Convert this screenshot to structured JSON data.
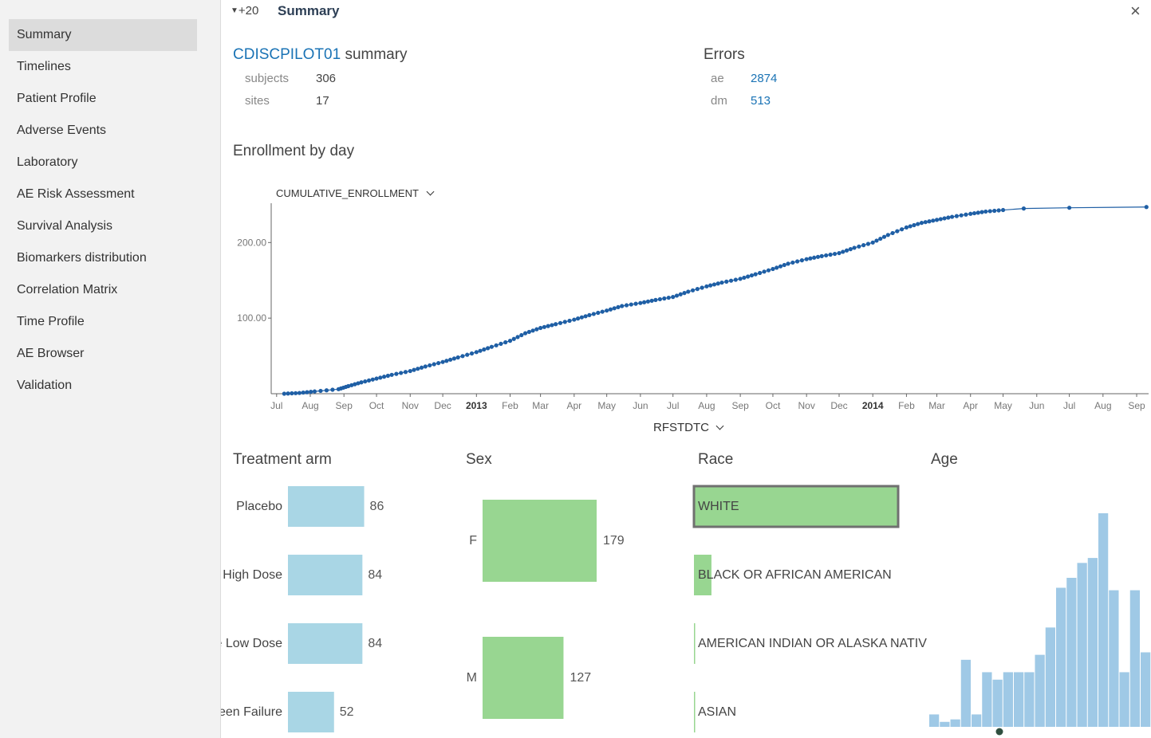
{
  "sidebar": {
    "items": [
      {
        "label": "Summary",
        "active": true
      },
      {
        "label": "Timelines"
      },
      {
        "label": "Patient Profile"
      },
      {
        "label": "Adverse Events"
      },
      {
        "label": "Laboratory"
      },
      {
        "label": "AE Risk Assessment"
      },
      {
        "label": "Survival Analysis"
      },
      {
        "label": "Biomarkers distribution"
      },
      {
        "label": "Correlation Matrix"
      },
      {
        "label": "Time Profile"
      },
      {
        "label": "AE Browser"
      },
      {
        "label": "Validation"
      }
    ]
  },
  "header": {
    "count": "+20",
    "title": "Summary",
    "close_icon": "close-icon",
    "collapse_icon": "caret-down-icon"
  },
  "summary": {
    "study": "CDISCPILOT01",
    "suffix": "summary",
    "stats": [
      {
        "label": "subjects",
        "value": "306"
      },
      {
        "label": "sites",
        "value": "17"
      }
    ]
  },
  "errors": {
    "title": "Errors",
    "items": [
      {
        "label": "ae",
        "value": "2874"
      },
      {
        "label": "dm",
        "value": "513"
      }
    ]
  },
  "enrollment": {
    "title": "Enrollment by day",
    "y_selector": "CUMULATIVE_ENROLLMENT",
    "x_selector": "RFSTDTC"
  },
  "chart_data": [
    {
      "type": "scatter",
      "title": "Enrollment by day",
      "ylabel": "CUMULATIVE_ENROLLMENT",
      "xlabel": "RFSTDTC",
      "color": "#1f5fa5",
      "ylim": [
        0,
        252
      ],
      "xlim": [
        "2012-06-26",
        "2014-09-12"
      ],
      "yticks": [
        "100.00",
        "200.00"
      ],
      "xticks": [
        "Jul",
        "Aug",
        "Sep",
        "Oct",
        "Nov",
        "Dec",
        "2013",
        "Feb",
        "Mar",
        "Apr",
        "May",
        "Jun",
        "Jul",
        "Aug",
        "Sep",
        "Oct",
        "Nov",
        "Dec",
        "2014",
        "Feb",
        "Mar",
        "Apr",
        "May",
        "Jun",
        "Jul",
        "Aug",
        "Sep"
      ],
      "x": [
        "2012-07-08",
        "2012-07-22",
        "2012-08-05",
        "2012-08-27",
        "2012-09-05",
        "2012-09-17",
        "2012-10-01",
        "2012-10-15",
        "2012-11-01",
        "2012-11-15",
        "2012-12-01",
        "2012-12-15",
        "2013-01-01",
        "2013-01-15",
        "2013-02-01",
        "2013-02-15",
        "2013-03-01",
        "2013-03-15",
        "2013-04-01",
        "2013-04-15",
        "2013-05-01",
        "2013-05-15",
        "2013-06-01",
        "2013-06-15",
        "2013-07-01",
        "2013-07-15",
        "2013-08-01",
        "2013-08-15",
        "2013-09-01",
        "2013-09-15",
        "2013-10-01",
        "2013-10-15",
        "2013-11-01",
        "2013-11-15",
        "2013-12-01",
        "2013-12-15",
        "2014-01-01",
        "2014-01-15",
        "2014-02-01",
        "2014-02-15",
        "2014-03-01",
        "2014-03-15",
        "2014-04-01",
        "2014-04-15",
        "2014-05-01",
        "2014-05-20",
        "2014-07-01",
        "2014-09-10"
      ],
      "y": [
        0,
        1,
        3,
        6,
        10,
        15,
        20,
        25,
        30,
        36,
        42,
        48,
        55,
        62,
        70,
        80,
        87,
        92,
        98,
        104,
        110,
        116,
        120,
        124,
        128,
        135,
        142,
        147,
        152,
        158,
        165,
        172,
        178,
        182,
        186,
        193,
        200,
        210,
        220,
        226,
        230,
        234,
        238,
        241,
        243,
        245,
        246,
        247
      ]
    },
    {
      "type": "bar",
      "title": "Treatment arm",
      "color": "#a9d6e5",
      "categories": [
        "Placebo",
        "High Dose",
        "e Low Dose",
        "een Failure"
      ],
      "values": [
        86,
        84,
        84,
        52
      ]
    },
    {
      "type": "bar",
      "title": "Sex",
      "color": "#98d691",
      "categories": [
        "F",
        "M"
      ],
      "values": [
        179,
        127
      ]
    },
    {
      "type": "bar",
      "title": "Race",
      "color": "#98d691",
      "categories": [
        "WHITE",
        "BLACK OR AFRICAN AMERICAN",
        "AMERICAN INDIAN OR ALASKA NATIV",
        "ASIAN"
      ],
      "values": [
        280,
        24,
        1,
        1
      ],
      "selected": "WHITE"
    },
    {
      "type": "bar",
      "title": "Age",
      "color": "#9fc9e6",
      "values": [
        5,
        2,
        3,
        27,
        5,
        22,
        19,
        22,
        22,
        22,
        29,
        40,
        56,
        60,
        66,
        68,
        86,
        55,
        22,
        55,
        30,
        15
      ]
    }
  ]
}
